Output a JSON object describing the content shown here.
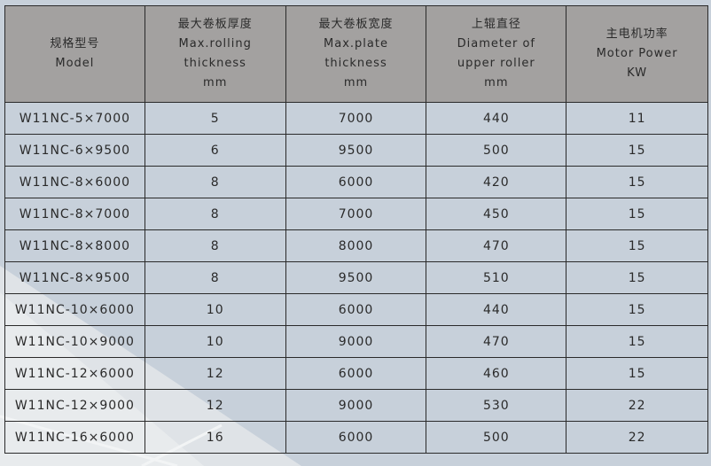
{
  "table": {
    "headers": [
      {
        "zh": "规格型号",
        "en": [
          "Model"
        ]
      },
      {
        "zh": "最大卷板厚度",
        "en": [
          "Max.rolling",
          "thickness",
          "mm"
        ]
      },
      {
        "zh": "最大卷板宽度",
        "en": [
          "Max.plate",
          "thickness",
          "mm"
        ]
      },
      {
        "zh": "上辊直径",
        "en": [
          "Diameter of",
          "upper roller",
          "mm"
        ]
      },
      {
        "zh": "主电机功率",
        "en": [
          "Motor Power",
          "KW"
        ]
      }
    ],
    "rows": [
      [
        "W11NC-5×7000",
        "5",
        "7000",
        "440",
        "11"
      ],
      [
        "W11NC-6×9500",
        "6",
        "9500",
        "500",
        "15"
      ],
      [
        "W11NC-8×6000",
        "8",
        "6000",
        "420",
        "15"
      ],
      [
        "W11NC-8×7000",
        "8",
        "7000",
        "450",
        "15"
      ],
      [
        "W11NC-8×8000",
        "8",
        "8000",
        "470",
        "15"
      ],
      [
        "W11NC-8×9500",
        "8",
        "9500",
        "510",
        "15"
      ],
      [
        "W11NC-10×6000",
        "10",
        "6000",
        "440",
        "15"
      ],
      [
        "W11NC-10×9000",
        "10",
        "9000",
        "470",
        "15"
      ],
      [
        "W11NC-12×6000",
        "12",
        "6000",
        "460",
        "15"
      ],
      [
        "W11NC-12×9000",
        "12",
        "9000",
        "530",
        "22"
      ],
      [
        "W11NC-16×6000",
        "16",
        "6000",
        "500",
        "22"
      ]
    ]
  }
}
